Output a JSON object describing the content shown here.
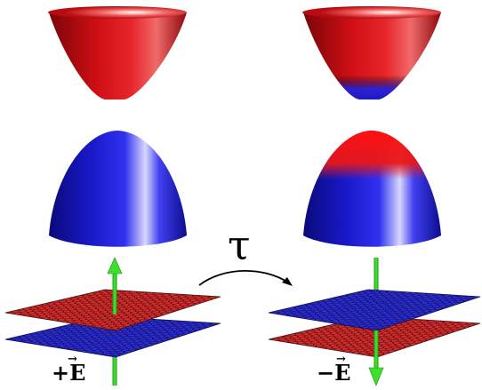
{
  "operator_symbol": "τ",
  "left_panel": {
    "field_label": "+E",
    "arrow_mark": "→",
    "conduction_band_color": "#d40d12",
    "valence_band_color": "#1c1ae0",
    "top_layer_color": "#d42a2a",
    "bottom_layer_color": "#2a2ad4",
    "field_direction": "up"
  },
  "right_panel": {
    "field_label": "−E",
    "arrow_mark": "→",
    "conduction_band_color": "#d40d12",
    "valence_band_color": "#1c1ae0",
    "top_layer_color": "#2a2ad4",
    "bottom_layer_color": "#d42a2a",
    "field_direction": "down"
  },
  "colors": {
    "field_arrow": "#33dd22",
    "lattice_line": "#202020"
  }
}
